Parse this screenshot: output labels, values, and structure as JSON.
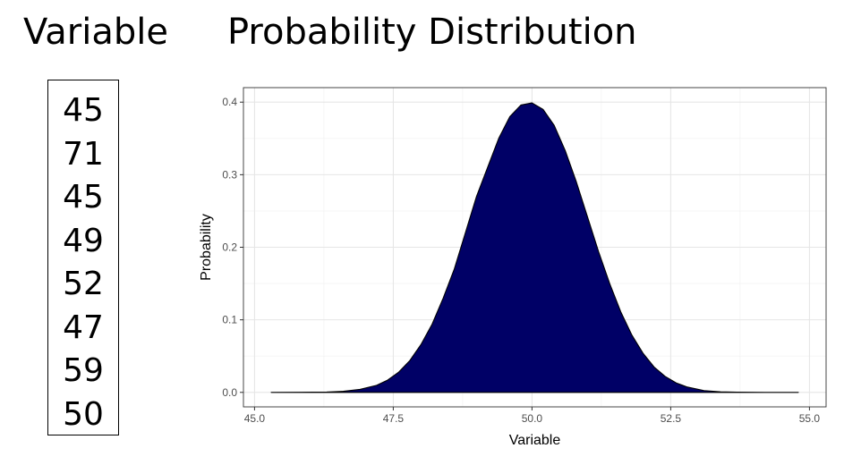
{
  "headings": {
    "left": "Variable",
    "right": "Probability Distribution"
  },
  "variable_values": [
    "45",
    "71",
    "45",
    "49",
    "52",
    "47",
    "59",
    "50"
  ],
  "chart_data": {
    "type": "area",
    "title": "",
    "xlabel": "Variable",
    "ylabel": "Probability",
    "xlim": [
      45.0,
      55.0
    ],
    "ylim": [
      0.0,
      0.4
    ],
    "x_ticks": [
      "45.0",
      "47.5",
      "50.0",
      "52.5",
      "55.0"
    ],
    "y_ticks": [
      "0.0",
      "0.1",
      "0.2",
      "0.3",
      "0.4"
    ],
    "grid": true,
    "legend": "none",
    "fill_color": "#000066",
    "line_color": "#000000",
    "series": [
      {
        "x": [
          45.3,
          45.8,
          46.3,
          46.6,
          46.9,
          47.2,
          47.4,
          47.6,
          47.8,
          48.0,
          48.2,
          48.4,
          48.6,
          48.8,
          49.0,
          49.2,
          49.4,
          49.6,
          49.8,
          50.0,
          50.2,
          50.4,
          50.6,
          50.8,
          51.0,
          51.2,
          51.4,
          51.6,
          51.8,
          52.0,
          52.2,
          52.4,
          52.6,
          52.8,
          53.1,
          53.4,
          53.7,
          54.2,
          54.8
        ],
        "y": [
          0.0,
          0.0001,
          0.0005,
          0.0015,
          0.0041,
          0.0097,
          0.017,
          0.028,
          0.044,
          0.066,
          0.094,
          0.13,
          0.17,
          0.22,
          0.27,
          0.31,
          0.35,
          0.38,
          0.396,
          0.399,
          0.39,
          0.368,
          0.333,
          0.29,
          0.242,
          0.194,
          0.15,
          0.111,
          0.079,
          0.054,
          0.035,
          0.022,
          0.013,
          0.0073,
          0.0025,
          0.0008,
          0.0002,
          0.0,
          0.0
        ]
      }
    ]
  }
}
